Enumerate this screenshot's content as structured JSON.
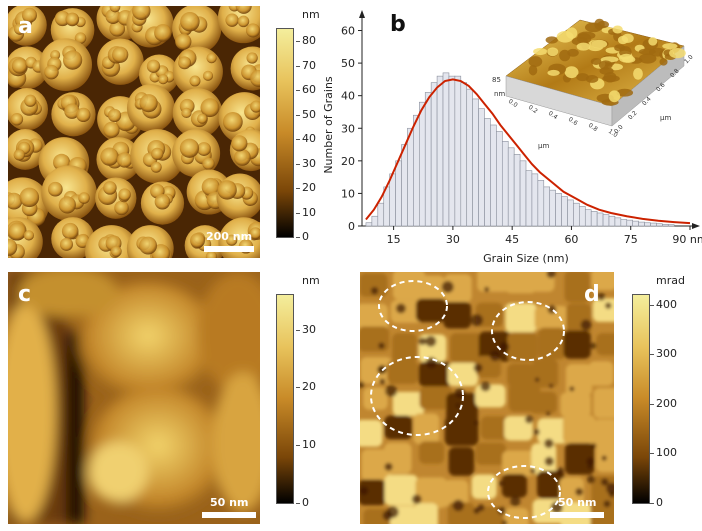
{
  "panels": {
    "a": {
      "label": "a",
      "scalebar": "200 nm"
    },
    "b": {
      "label": "b"
    },
    "c": {
      "label": "c",
      "scalebar": "50 nm"
    },
    "d": {
      "label": "d",
      "scalebar": "50 nm"
    }
  },
  "colorbars": {
    "a": {
      "unit": "nm",
      "ticks": [
        "80",
        "70",
        "60",
        "50",
        "40",
        "30",
        "20",
        "10",
        "0"
      ]
    },
    "c": {
      "unit": "nm",
      "ticks": [
        "30",
        "20",
        "10",
        "0"
      ]
    },
    "d": {
      "unit": "mrad",
      "ticks": [
        "400",
        "300",
        "200",
        "100",
        "0"
      ]
    }
  },
  "inset": {
    "zlabel": "85",
    "zunit": "nm",
    "axis_unit_left": "μm",
    "axis_unit_right": "μm",
    "left_ticks": [
      "0.0",
      "0.2",
      "0.4",
      "0.6",
      "0.8",
      "1.0"
    ],
    "right_ticks": [
      "1.0",
      "0.8",
      "0.6",
      "0.4",
      "0.2",
      "0.0"
    ]
  },
  "colors": {
    "afm_dark": "#1a0c00",
    "afm_mid": "#b87a1e",
    "afm_light": "#f5e08a",
    "fit_line": "#cc2200",
    "bar_fill": "#e4e6ee",
    "bar_stroke": "#8a8f9c"
  },
  "chart_data": {
    "type": "bar",
    "xlabel": "Grain Size (nm)",
    "ylabel": "Number of Grains",
    "xlim": [
      7,
      90
    ],
    "ylim": [
      0,
      62
    ],
    "xticks": [
      "15",
      "30",
      "45",
      "60",
      "75",
      "90 nm"
    ],
    "yticks": [
      "0",
      "10",
      "20",
      "30",
      "40",
      "50",
      "60"
    ],
    "bin_width": 1.5,
    "bin_starts": [
      8,
      9.5,
      11,
      12.5,
      14,
      15.5,
      17,
      18.5,
      20,
      21.5,
      23,
      24.5,
      26,
      27.5,
      29,
      30.5,
      32,
      33.5,
      35,
      36.5,
      38,
      39.5,
      41,
      42.5,
      44,
      45.5,
      47,
      48.5,
      50,
      51.5,
      53,
      54.5,
      56,
      57.5,
      59,
      60.5,
      62,
      63.5,
      65,
      66.5,
      68,
      69.5,
      71,
      72.5,
      74,
      75.5,
      77,
      78.5,
      80,
      81.5,
      83,
      84.5
    ],
    "values": [
      1,
      3,
      7,
      12,
      16,
      20,
      25,
      30,
      34,
      38,
      41,
      44,
      46,
      47,
      46,
      46,
      44,
      42,
      39,
      36,
      33,
      31,
      29,
      26,
      24,
      22,
      20,
      17,
      16,
      14,
      12,
      11,
      10,
      9,
      8,
      7,
      6,
      5,
      4.5,
      4,
      3.5,
      3,
      2.5,
      2,
      1.8,
      1.5,
      1.2,
      1,
      0.9,
      0.7,
      0.5,
      0.4
    ],
    "fit": {
      "name": "fit",
      "x": [
        8,
        10,
        12,
        14,
        16,
        18,
        20,
        22,
        24,
        26,
        28,
        30,
        32,
        34,
        36,
        38,
        40,
        42,
        44,
        46,
        48,
        50,
        52,
        55,
        58,
        61,
        64,
        67,
        70,
        74,
        78,
        82,
        86,
        90
      ],
      "y": [
        2,
        5,
        9,
        14,
        19.5,
        25,
        30.5,
        35.5,
        39.5,
        42.5,
        44.5,
        45,
        44.5,
        43,
        40.5,
        37.5,
        34.5,
        31,
        28,
        25,
        22,
        19,
        16.5,
        13.5,
        10.5,
        8.5,
        6.5,
        5,
        4,
        3,
        2.2,
        1.6,
        1.2,
        0.9
      ]
    }
  }
}
